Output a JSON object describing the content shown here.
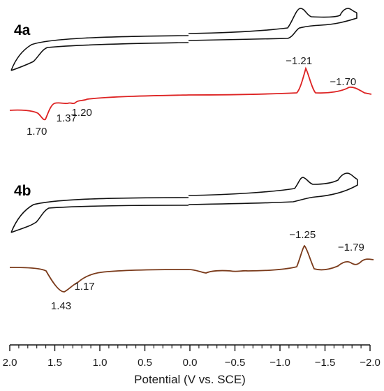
{
  "chart_data": {
    "type": "line",
    "xlabel": "Potential (V vs. SCE)",
    "xlim": [
      2.0,
      -2.0
    ],
    "x_axis_reversed": true,
    "x_ticks": [
      2.0,
      1.5,
      1.0,
      0.5,
      0.0,
      -0.5,
      -1.0,
      -1.5,
      -2.0
    ],
    "x_tick_labels": [
      "2.0",
      "1.5",
      "1.0",
      "0.5",
      "0.0",
      "−0.5",
      "−1.0",
      "−1.5",
      "−2.0"
    ],
    "grid": false,
    "panels": [
      {
        "label": "4a",
        "cv": {
          "color": "#111111",
          "oxidation_features_V": [
            1.7,
            1.37,
            1.2
          ],
          "reduction_features_V": [
            -1.21,
            -1.7
          ]
        },
        "dpv": {
          "color": "#dd2222",
          "peak_labels": [
            {
              "x": 1.7,
              "text": "1.70"
            },
            {
              "x": 1.37,
              "text": "1.37"
            },
            {
              "x": 1.2,
              "text": "1.20"
            },
            {
              "x": -1.21,
              "text": "−1.21"
            },
            {
              "x": -1.7,
              "text": "−1.70"
            }
          ]
        }
      },
      {
        "label": "4b",
        "cv": {
          "color": "#111111",
          "oxidation_features_V": [
            1.43,
            1.17
          ],
          "reduction_features_V": [
            -1.25,
            -1.79
          ]
        },
        "dpv": {
          "color": "#7a3a1a",
          "peak_labels": [
            {
              "x": 1.43,
              "text": "1.43"
            },
            {
              "x": 1.17,
              "text": "1.17"
            },
            {
              "x": -1.25,
              "text": "−1.25"
            },
            {
              "x": -1.79,
              "text": "−1.79"
            }
          ]
        }
      }
    ]
  }
}
